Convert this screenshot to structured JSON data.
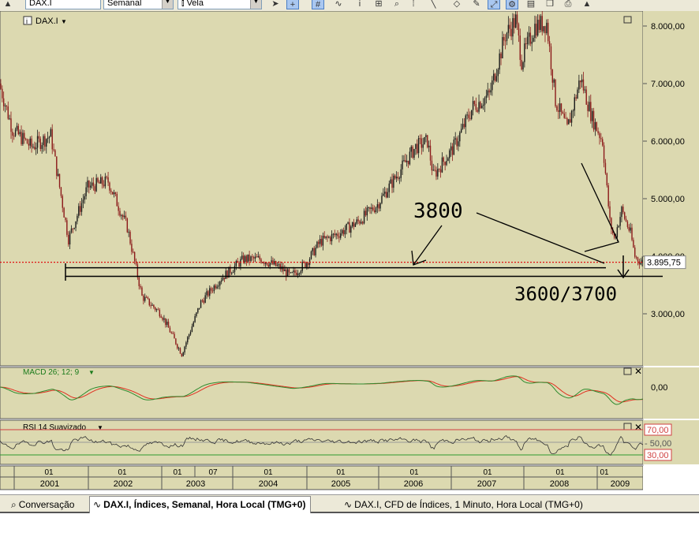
{
  "toolbar": {
    "symbol": "DAX.I",
    "period": "Semanal",
    "chart_style": "Vela",
    "icons": [
      "scroll-up-icon",
      "pointer-icon",
      "crosshair-icon",
      "grid-icon",
      "indicator-icon",
      "info-icon",
      "zoom-fit-icon",
      "zoom-icon",
      "one-to-one-icon",
      "line-tool-icon",
      "eraser-icon",
      "link-icon",
      "link-settings-icon",
      "export-icon",
      "print-icon",
      "alert-icon"
    ]
  },
  "main_panel": {
    "label": "DAX.I"
  },
  "macd_panel": {
    "label": "MACD 26; 12; 9",
    "zero_label": "0,00"
  },
  "rsi_panel": {
    "label": "RSI 14 Suavizado",
    "levels": [
      "70,00",
      "50,00",
      "30,00"
    ]
  },
  "price_axis": {
    "labels": [
      "8.000,00",
      "7.000,00",
      "6.000,00",
      "5.000,00",
      "4.000,00",
      "3.000,00"
    ]
  },
  "last_price": "3.895,75",
  "annotations": {
    "level_a": "3800",
    "level_b": "3600/3700"
  },
  "time_axis": {
    "months": [
      "01",
      "01",
      "01",
      "07",
      "01",
      "01",
      "01",
      "01",
      "01",
      "01"
    ],
    "years": [
      "2001",
      "2002",
      "2003",
      "2004",
      "2005",
      "2006",
      "2007",
      "2008",
      "2009"
    ]
  },
  "tabs": [
    {
      "label": "Conversação",
      "active": false
    },
    {
      "label": "DAX.I, Índices, Semanal, Hora Local (TMG+0)",
      "active": true
    },
    {
      "label": "DAX.I, CFD de Índices, 1 Minuto, Hora Local (TMG+0)",
      "active": false
    }
  ],
  "colors": {
    "background": "#dcd9b0",
    "candle_up": "#1a1a1a",
    "candle_down": "#8b1a1a",
    "macd_line": "#2e8b2e",
    "signal_line": "#e03020",
    "rsi_line": "#333333",
    "rsi_upper": "#d04040",
    "rsi_lower": "#2e9b2e",
    "last_price_line": "#e01010"
  },
  "chart_data": {
    "type": "line",
    "title": "DAX.I",
    "ylim": [
      2200,
      8250
    ],
    "x_range": [
      "2000-10-23",
      "2009-03-09"
    ],
    "x": [
      "2000-10-23",
      "2000-12-25",
      "2001-03-26",
      "2001-06-25",
      "2001-09-17",
      "2001-12-17",
      "2002-03-25",
      "2002-06-24",
      "2002-09-02",
      "2002-12-02",
      "2003-03-10",
      "2003-06-09",
      "2003-09-08",
      "2003-12-29",
      "2004-03-22",
      "2004-06-21",
      "2004-08-09",
      "2004-10-25",
      "2004-12-27",
      "2005-03-28",
      "2005-06-27",
      "2005-09-26",
      "2005-12-26",
      "2006-03-27",
      "2006-05-22",
      "2006-06-19",
      "2006-09-25",
      "2006-12-25",
      "2007-03-12",
      "2007-05-28",
      "2007-07-16",
      "2007-08-13",
      "2007-10-15",
      "2007-12-10",
      "2008-01-21",
      "2008-03-17",
      "2008-05-19",
      "2008-07-14",
      "2008-09-01",
      "2008-10-06",
      "2008-10-27",
      "2008-12-01",
      "2009-01-12",
      "2009-02-02",
      "2009-03-02"
    ],
    "series": [
      {
        "name": "DAX.I",
        "values": [
          7000,
          6200,
          5900,
          6100,
          4300,
          5200,
          5300,
          4500,
          3300,
          3000,
          2300,
          3200,
          3600,
          3950,
          3950,
          3800,
          3650,
          3900,
          4250,
          4400,
          4600,
          4900,
          5400,
          5900,
          6000,
          5400,
          5900,
          6600,
          6800,
          7850,
          8100,
          7400,
          8000,
          8050,
          6700,
          6200,
          7100,
          6400,
          6000,
          4600,
          4300,
          4800,
          4400,
          4000,
          3900
        ]
      }
    ],
    "price_ticks": [
      3000,
      4000,
      5000,
      6000,
      7000,
      8000
    ],
    "support_lines": [
      3800,
      3650
    ],
    "last_value": 3895.75,
    "grid": false
  }
}
